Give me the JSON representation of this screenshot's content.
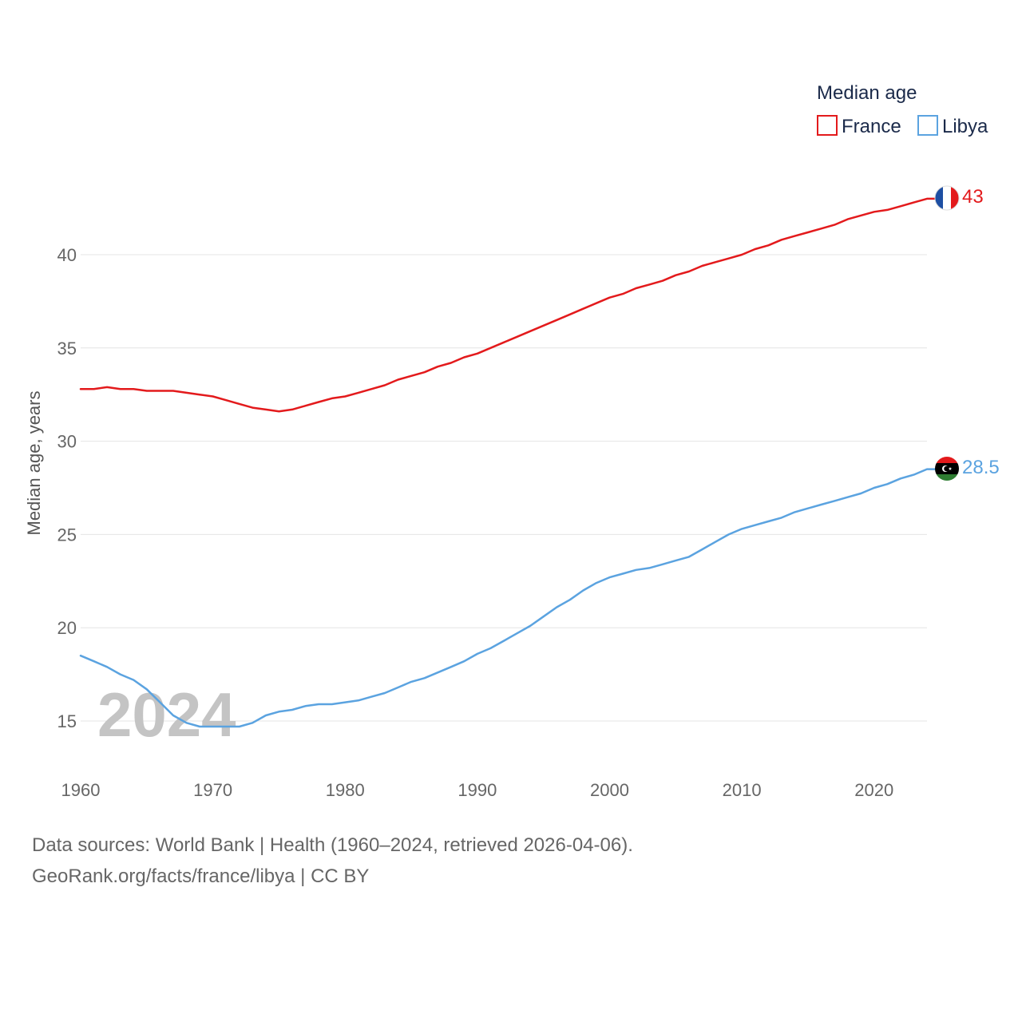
{
  "chart_data": {
    "type": "line",
    "ylabel": "Median age, years",
    "xlim": [
      1960,
      2024
    ],
    "ylim": [
      12.5,
      45
    ],
    "y_ticks": [
      15,
      20,
      25,
      30,
      35,
      40
    ],
    "x_ticks": [
      1960,
      1970,
      1980,
      1990,
      2000,
      2010,
      2020
    ],
    "grid": true,
    "legend": {
      "title": "Median age",
      "position": "top-right"
    },
    "year_label": "2024",
    "x": [
      1960,
      1961,
      1962,
      1963,
      1964,
      1965,
      1966,
      1967,
      1968,
      1969,
      1970,
      1971,
      1972,
      1973,
      1974,
      1975,
      1976,
      1977,
      1978,
      1979,
      1980,
      1981,
      1982,
      1983,
      1984,
      1985,
      1986,
      1987,
      1988,
      1989,
      1990,
      1991,
      1992,
      1993,
      1994,
      1995,
      1996,
      1997,
      1998,
      1999,
      2000,
      2001,
      2002,
      2003,
      2004,
      2005,
      2006,
      2007,
      2008,
      2009,
      2010,
      2011,
      2012,
      2013,
      2014,
      2015,
      2016,
      2017,
      2018,
      2019,
      2020,
      2021,
      2022,
      2023,
      2024
    ],
    "series": [
      {
        "name": "France",
        "color": "#e31a1c",
        "end_label": "43",
        "values": [
          32.8,
          32.8,
          32.9,
          32.8,
          32.8,
          32.7,
          32.7,
          32.7,
          32.6,
          32.5,
          32.4,
          32.2,
          32.0,
          31.8,
          31.7,
          31.6,
          31.7,
          31.9,
          32.1,
          32.3,
          32.4,
          32.6,
          32.8,
          33.0,
          33.3,
          33.5,
          33.7,
          34.0,
          34.2,
          34.5,
          34.7,
          35.0,
          35.3,
          35.6,
          35.9,
          36.2,
          36.5,
          36.8,
          37.1,
          37.4,
          37.7,
          37.9,
          38.2,
          38.4,
          38.6,
          38.9,
          39.1,
          39.4,
          39.6,
          39.8,
          40.0,
          40.3,
          40.5,
          40.8,
          41.0,
          41.2,
          41.4,
          41.6,
          41.9,
          42.1,
          42.3,
          42.4,
          42.6,
          42.8,
          43.0
        ]
      },
      {
        "name": "Libya",
        "color": "#5ba3e0",
        "end_label": "28.5",
        "values": [
          18.5,
          18.2,
          17.9,
          17.5,
          17.2,
          16.7,
          16.0,
          15.3,
          14.9,
          14.7,
          14.7,
          14.7,
          14.7,
          14.9,
          15.3,
          15.5,
          15.6,
          15.8,
          15.9,
          15.9,
          16.0,
          16.1,
          16.3,
          16.5,
          16.8,
          17.1,
          17.3,
          17.6,
          17.9,
          18.2,
          18.6,
          18.9,
          19.3,
          19.7,
          20.1,
          20.6,
          21.1,
          21.5,
          22.0,
          22.4,
          22.7,
          22.9,
          23.1,
          23.2,
          23.4,
          23.6,
          23.8,
          24.2,
          24.6,
          25.0,
          25.3,
          25.5,
          25.7,
          25.9,
          26.2,
          26.4,
          26.6,
          26.8,
          27.0,
          27.2,
          27.5,
          27.7,
          28.0,
          28.2,
          28.5
        ]
      }
    ]
  },
  "footer": {
    "sources": "Data sources: World Bank | Health (1960–2024, retrieved 2026-04-06).",
    "credit": "GeoRank.org/facts/france/libya | CC BY"
  }
}
